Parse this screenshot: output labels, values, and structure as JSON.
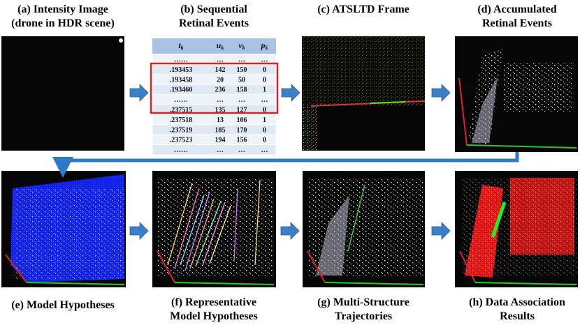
{
  "captions": {
    "a": [
      "(a) Intensity Image",
      "(drone in HDR scene)"
    ],
    "b": [
      "(b) Sequential",
      "Retinal Events"
    ],
    "c": [
      "(c) ATSLTD Frame"
    ],
    "d": [
      "(d) Accumulated",
      "Retinal Events"
    ],
    "e": [
      "(e) Model Hypotheses"
    ],
    "f": [
      "(f) Representative",
      "Model Hypotheses"
    ],
    "g": [
      "(g) Multi-Structure",
      "Trajectories"
    ],
    "h": [
      "(h) Data Association",
      "Results"
    ]
  },
  "table": {
    "header": [
      {
        "base": "t",
        "sub": "k"
      },
      {
        "base": "u",
        "sub": "k"
      },
      {
        "base": "v",
        "sub": "k"
      },
      {
        "base": "p",
        "sub": "k"
      }
    ],
    "rows": [
      [
        "……",
        "…",
        "…",
        "…"
      ],
      [
        ".193453",
        "142",
        "150",
        "0"
      ],
      [
        ".193458",
        "20",
        "50",
        "0"
      ],
      [
        ".193460",
        "236",
        "158",
        "1"
      ],
      [
        "……",
        "…",
        "…",
        "…"
      ],
      [
        ".237515",
        "135",
        "127",
        "0"
      ],
      [
        ".237518",
        "13",
        "106",
        "1"
      ],
      [
        ".237519",
        "185",
        "170",
        "0"
      ],
      [
        ".237523",
        "194",
        "156",
        "0"
      ],
      [
        "……",
        "…",
        "…",
        "…"
      ]
    ]
  }
}
